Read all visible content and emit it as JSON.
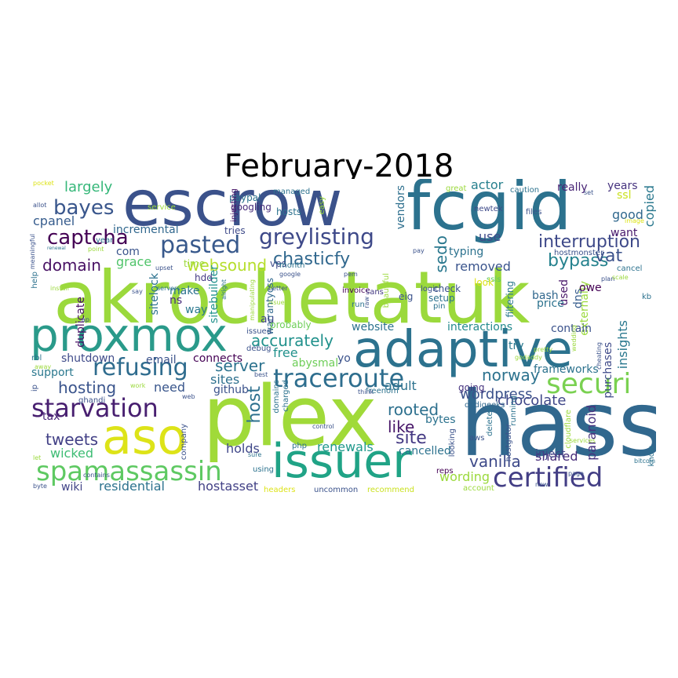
{
  "title": "February-2018",
  "words": [
    {
      "text": "akrochetatuk",
      "c": "#9bd93c"
    },
    {
      "text": "escrow",
      "c": "#3b528b"
    },
    {
      "text": "fcgid",
      "c": "#2c728e"
    },
    {
      "text": "plex",
      "c": "#a0da39"
    },
    {
      "text": "hass",
      "c": "#31688e"
    },
    {
      "text": "proxmox",
      "c": "#2a9a8a"
    },
    {
      "text": "adaptive",
      "c": "#2c728e"
    },
    {
      "text": "issuer",
      "c": "#20a386"
    },
    {
      "text": "aso",
      "c": "#dde318"
    },
    {
      "text": "spamassassin",
      "c": "#5ec962"
    },
    {
      "text": "securi",
      "c": "#7ad151"
    },
    {
      "text": "certified",
      "c": "#433e85"
    },
    {
      "text": "starvation",
      "c": "#481f70"
    },
    {
      "text": "refusing",
      "c": "#2f6c8e"
    },
    {
      "text": "traceroute",
      "c": "#2e6e8e"
    },
    {
      "text": "pasted",
      "c": "#38598c"
    },
    {
      "text": "greylisting",
      "c": "#3e4989"
    },
    {
      "text": "captcha",
      "c": "#440154"
    },
    {
      "text": "bayes",
      "c": "#39568c"
    },
    {
      "text": "chasticfy",
      "c": "#31688e"
    },
    {
      "text": "interruption",
      "c": "#3e4989"
    },
    {
      "text": "websound",
      "c": "#b5de2b"
    },
    {
      "text": "bypass",
      "c": "#26828e"
    },
    {
      "text": "domain",
      "c": "#471063"
    },
    {
      "text": "hosting",
      "c": "#3a548c"
    },
    {
      "text": "server",
      "c": "#2c728e"
    },
    {
      "text": "norway",
      "c": "#2c728e"
    },
    {
      "text": "accurately",
      "c": "#21918c"
    },
    {
      "text": "tweets",
      "c": "#424086"
    },
    {
      "text": "vanilla",
      "c": "#3e4a89"
    },
    {
      "text": "host",
      "c": "#2d708e"
    },
    {
      "text": "rooted",
      "c": "#2d708e"
    },
    {
      "text": "sedo",
      "c": "#2a788e"
    },
    {
      "text": "like",
      "c": "#481769"
    },
    {
      "text": "site",
      "c": "#443983"
    },
    {
      "text": "vat",
      "c": "#3b528b"
    },
    {
      "text": "largely",
      "c": "#35b779"
    },
    {
      "text": "insights",
      "c": "#2a788e"
    },
    {
      "text": "wordpress",
      "c": "#3b528b"
    },
    {
      "text": "chocolate",
      "c": "#3f4788"
    },
    {
      "text": "renewals",
      "c": "#1f988b"
    },
    {
      "text": "holds",
      "c": "#3f4788"
    },
    {
      "text": "wicked",
      "c": "#3dbc74"
    },
    {
      "text": "residential",
      "c": "#2c728e"
    },
    {
      "text": "hostasset",
      "c": "#424186"
    },
    {
      "text": "wording",
      "c": "#9bd93c"
    },
    {
      "text": "cpanel",
      "c": "#365c8d"
    },
    {
      "text": "use",
      "c": "#3e4a89"
    },
    {
      "text": "good",
      "c": "#31688e"
    },
    {
      "text": "copied",
      "c": "#2a788e"
    },
    {
      "text": "removed",
      "c": "#3a548c"
    },
    {
      "text": "grace",
      "c": "#50c46a"
    },
    {
      "text": "free",
      "c": "#21918c"
    },
    {
      "text": "adult",
      "c": "#2c728e"
    },
    {
      "text": "need",
      "c": "#39568c"
    },
    {
      "text": "sites",
      "c": "#2d708e"
    },
    {
      "text": "shared",
      "c": "#472c7a"
    },
    {
      "text": "actor",
      "c": "#27808e"
    },
    {
      "text": "paranoid",
      "c": "#46327e"
    },
    {
      "text": "vendors",
      "c": "#2e6f8e"
    },
    {
      "text": "typing",
      "c": "#2c728e"
    },
    {
      "text": "incremental",
      "c": "#31688e"
    },
    {
      "text": "com",
      "c": "#3a548c"
    },
    {
      "text": "purchases",
      "c": "#3e4a89"
    },
    {
      "text": "abysmal",
      "c": "#6ece58"
    },
    {
      "text": "inject",
      "c": "#404688"
    },
    {
      "text": "tax",
      "c": "#482576"
    },
    {
      "text": "wiki",
      "c": "#414487"
    },
    {
      "text": "bytes",
      "c": "#2c728e"
    },
    {
      "text": "cancelled",
      "c": "#2c728e"
    },
    {
      "text": "externally",
      "c": "#9bd93c"
    },
    {
      "text": "frameworks",
      "c": "#2c728e"
    },
    {
      "text": "contain",
      "c": "#3b528b"
    },
    {
      "text": "bash",
      "c": "#31688e"
    },
    {
      "text": "price",
      "c": "#2c728e"
    },
    {
      "text": "dns",
      "c": "#365c8d"
    },
    {
      "text": "want",
      "c": "#481a6c"
    },
    {
      "text": "really",
      "c": "#482475"
    },
    {
      "text": "years",
      "c": "#46337f"
    },
    {
      "text": "ssl",
      "c": "#cae11f"
    },
    {
      "text": "owe",
      "c": "#440154"
    },
    {
      "text": "used",
      "c": "#481769"
    },
    {
      "text": "try",
      "c": "#2a788e"
    },
    {
      "text": "website",
      "c": "#2c728e"
    },
    {
      "text": "interactions",
      "c": "#238a8d"
    },
    {
      "text": "github",
      "c": "#3b528b"
    },
    {
      "text": "support",
      "c": "#2a788e"
    },
    {
      "text": "email",
      "c": "#3b528b"
    },
    {
      "text": "connects",
      "c": "#440154"
    },
    {
      "text": "shutdown",
      "c": "#3e4a89"
    },
    {
      "text": "duplicate",
      "c": "#471164"
    },
    {
      "text": "sitelock",
      "c": "#2c728e"
    },
    {
      "text": "sitebuilder",
      "c": "#21918c"
    },
    {
      "text": "warrantycss",
      "c": "#31688e"
    },
    {
      "text": "probably",
      "c": "#6ece58"
    },
    {
      "text": "au",
      "c": "#404688"
    },
    {
      "text": "yo",
      "c": "#3b528b"
    },
    {
      "text": "make",
      "c": "#2c728e"
    },
    {
      "text": "ns",
      "c": "#472c7a"
    },
    {
      "text": "way",
      "c": "#2a788e"
    },
    {
      "text": "hdd",
      "c": "#443983"
    },
    {
      "text": "time",
      "c": "#9bd93c"
    },
    {
      "text": "vps",
      "c": "#3e4a89"
    },
    {
      "text": "paypal",
      "c": "#2c728e"
    },
    {
      "text": "googling",
      "c": "#472c7a"
    },
    {
      "text": "hosts",
      "c": "#2c728e"
    },
    {
      "text": "tries",
      "c": "#3e4a89"
    },
    {
      "text": "injecting",
      "c": "#481769"
    },
    {
      "text": "managed",
      "c": "#2c728e"
    },
    {
      "text": "easy",
      "c": "#9bd93c"
    },
    {
      "text": "service",
      "c": "#9bd93c"
    },
    {
      "text": "year",
      "c": "#2c728e"
    },
    {
      "text": "month",
      "c": "#2c728e"
    },
    {
      "text": "ghandi",
      "c": "#3b528b"
    },
    {
      "text": "freenom",
      "c": "#2c728e"
    },
    {
      "text": "going",
      "c": "#46337f"
    },
    {
      "text": "dedigeeks",
      "c": "#31688e"
    },
    {
      "text": "newtek",
      "c": "#3e4a89"
    },
    {
      "text": "files",
      "c": "#3b528b"
    },
    {
      "text": "caution",
      "c": "#2c728e"
    },
    {
      "text": "great",
      "c": "#9bd93c"
    },
    {
      "text": "hostmonster",
      "c": "#3b528b"
    },
    {
      "text": "cancel",
      "c": "#2c728e"
    },
    {
      "text": "kb",
      "c": "#2c728e"
    },
    {
      "text": "ssls",
      "c": "#5ec962"
    },
    {
      "text": "invoice",
      "c": "#440154"
    },
    {
      "text": "logic",
      "c": "#3b528b"
    },
    {
      "text": "check",
      "c": "#3b528b"
    },
    {
      "text": "setup",
      "c": "#2c728e"
    },
    {
      "text": "filtering",
      "c": "#2a788e"
    },
    {
      "text": "eig",
      "c": "#3b528b"
    },
    {
      "text": "run",
      "c": "#2c728e"
    },
    {
      "text": "sans",
      "c": "#443983"
    },
    {
      "text": "pin",
      "c": "#2c728e"
    },
    {
      "text": "reps",
      "c": "#440154"
    },
    {
      "text": "aws",
      "c": "#3b528b"
    },
    {
      "text": "running",
      "c": "#2c728e"
    },
    {
      "text": "cloudflare",
      "c": "#9bd93c"
    },
    {
      "text": "hostgator",
      "c": "#3b528b"
    },
    {
      "text": "deleted",
      "c": "#2c728e"
    },
    {
      "text": "looking",
      "c": "#3b528b"
    },
    {
      "text": "know",
      "c": "#2c728e"
    },
    {
      "text": "bitcoin",
      "c": "#2c728e"
    },
    {
      "text": "new",
      "c": "#3b528b"
    },
    {
      "text": "account",
      "c": "#9bd93c"
    },
    {
      "text": "recommend",
      "c": "#cae11f"
    },
    {
      "text": "uncommon",
      "c": "#3b528b"
    },
    {
      "text": "headers",
      "c": "#dde318"
    },
    {
      "text": "using",
      "c": "#2c728e"
    },
    {
      "text": "php",
      "c": "#2c728e"
    },
    {
      "text": "sure",
      "c": "#2c728e"
    },
    {
      "text": "company",
      "c": "#3b528b"
    },
    {
      "text": "byte",
      "c": "#3b528b"
    },
    {
      "text": "let",
      "c": "#9bd93c"
    },
    {
      "text": "contains",
      "c": "#3b528b"
    },
    {
      "text": "work",
      "c": "#9bd93c"
    },
    {
      "text": "web",
      "c": "#3b528b"
    },
    {
      "text": "ip",
      "c": "#3b528b"
    },
    {
      "text": "rbl",
      "c": "#2c728e"
    },
    {
      "text": "help",
      "c": "#2c728e"
    },
    {
      "text": "meaningful",
      "c": "#3b528b"
    },
    {
      "text": "install",
      "c": "#9bd93c"
    },
    {
      "text": "allot",
      "c": "#3b528b"
    },
    {
      "text": "pocket",
      "c": "#dde318"
    },
    {
      "text": "renewal",
      "c": "#2c728e"
    },
    {
      "text": "point",
      "c": "#9bd93c"
    },
    {
      "text": "servers",
      "c": "#2c728e"
    },
    {
      "text": "upset",
      "c": "#3b528b"
    },
    {
      "text": "say",
      "c": "#3b528b"
    },
    {
      "text": "alright",
      "c": "#2c728e"
    },
    {
      "text": "better",
      "c": "#3b528b"
    },
    {
      "text": "issues",
      "c": "#9bd93c"
    },
    {
      "text": "raw",
      "c": "#3b528b"
    },
    {
      "text": "beautiful",
      "c": "#9bd93c"
    },
    {
      "text": "pay",
      "c": "#3b528b"
    },
    {
      "text": "pem",
      "c": "#3b528b"
    },
    {
      "text": "google",
      "c": "#3b528b"
    },
    {
      "text": "look",
      "c": "#dde318"
    },
    {
      "text": "plan",
      "c": "#3b528b"
    },
    {
      "text": "scale",
      "c": "#9bd93c"
    },
    {
      "text": "image",
      "c": "#dde318"
    },
    {
      "text": "set",
      "c": "#3b528b"
    },
    {
      "text": "wedding",
      "c": "#9bd93c"
    },
    {
      "text": "pretty",
      "c": "#9bd93c"
    },
    {
      "text": "godaddy",
      "c": "#9bd93c"
    },
    {
      "text": "services",
      "c": "#9bd93c"
    },
    {
      "text": "page",
      "c": "#3b528b"
    },
    {
      "text": "cheating",
      "c": "#3b528b"
    },
    {
      "text": "manipulating",
      "c": "#9bd93c"
    },
    {
      "text": "think",
      "c": "#3b528b"
    },
    {
      "text": "best",
      "c": "#3b528b"
    },
    {
      "text": "debug",
      "c": "#3b528b"
    },
    {
      "text": "issued",
      "c": "#3b528b"
    },
    {
      "text": "domains",
      "c": "#2c728e"
    },
    {
      "text": "charged",
      "c": "#2c728e"
    },
    {
      "text": "control",
      "c": "#3b528b"
    },
    {
      "text": "away",
      "c": "#9bd93c"
    },
    {
      "text": "ap",
      "c": "#3b528b"
    }
  ]
}
